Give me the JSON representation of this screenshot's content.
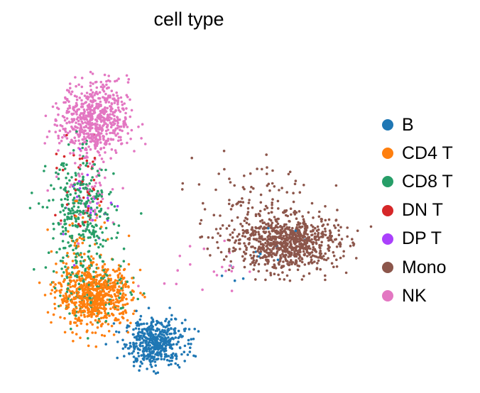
{
  "chart_data": {
    "type": "scatter",
    "title": "cell type",
    "xlabel": "",
    "ylabel": "",
    "axes_visible": false,
    "grid": false,
    "xlim": [
      0,
      1
    ],
    "ylim": [
      0,
      1
    ],
    "legend_placement": "right",
    "marker_size": "small",
    "point_count_note_per_series": null,
    "series": [
      {
        "name": "B",
        "color": "#1f77b4",
        "clusters": [
          {
            "cx": 0.4,
            "cy": 0.1,
            "sx": 0.045,
            "sy": 0.035,
            "n": 480
          },
          {
            "cx": 0.7,
            "cy": 0.34,
            "sx": 0.08,
            "sy": 0.05,
            "n": 12
          }
        ]
      },
      {
        "name": "CD4 T",
        "color": "#ff7f0e",
        "clusters": [
          {
            "cx": 0.22,
            "cy": 0.24,
            "sx": 0.055,
            "sy": 0.045,
            "n": 720
          },
          {
            "cx": 0.18,
            "cy": 0.4,
            "sx": 0.04,
            "sy": 0.06,
            "n": 40
          }
        ]
      },
      {
        "name": "CD8 T",
        "color": "#279e68",
        "clusters": [
          {
            "cx": 0.18,
            "cy": 0.48,
            "sx": 0.05,
            "sy": 0.09,
            "n": 330
          },
          {
            "cx": 0.22,
            "cy": 0.26,
            "sx": 0.06,
            "sy": 0.05,
            "n": 110
          }
        ]
      },
      {
        "name": "DN T",
        "color": "#d62728",
        "clusters": [
          {
            "cx": 0.18,
            "cy": 0.55,
            "sx": 0.04,
            "sy": 0.07,
            "n": 45
          }
        ]
      },
      {
        "name": "DP T",
        "color": "#aa40fc",
        "clusters": [
          {
            "cx": 0.2,
            "cy": 0.5,
            "sx": 0.05,
            "sy": 0.07,
            "n": 25
          }
        ]
      },
      {
        "name": "Mono",
        "color": "#8c564b",
        "clusters": [
          {
            "cx": 0.8,
            "cy": 0.4,
            "sx": 0.075,
            "sy": 0.04,
            "n": 750
          },
          {
            "cx": 0.7,
            "cy": 0.47,
            "sx": 0.09,
            "sy": 0.08,
            "n": 170
          }
        ]
      },
      {
        "name": "NK",
        "color": "#e377c2",
        "clusters": [
          {
            "cx": 0.22,
            "cy": 0.77,
            "sx": 0.05,
            "sy": 0.055,
            "n": 620
          },
          {
            "cx": 0.2,
            "cy": 0.57,
            "sx": 0.05,
            "sy": 0.08,
            "n": 60
          },
          {
            "cx": 0.55,
            "cy": 0.33,
            "sx": 0.06,
            "sy": 0.04,
            "n": 20
          }
        ]
      }
    ]
  }
}
